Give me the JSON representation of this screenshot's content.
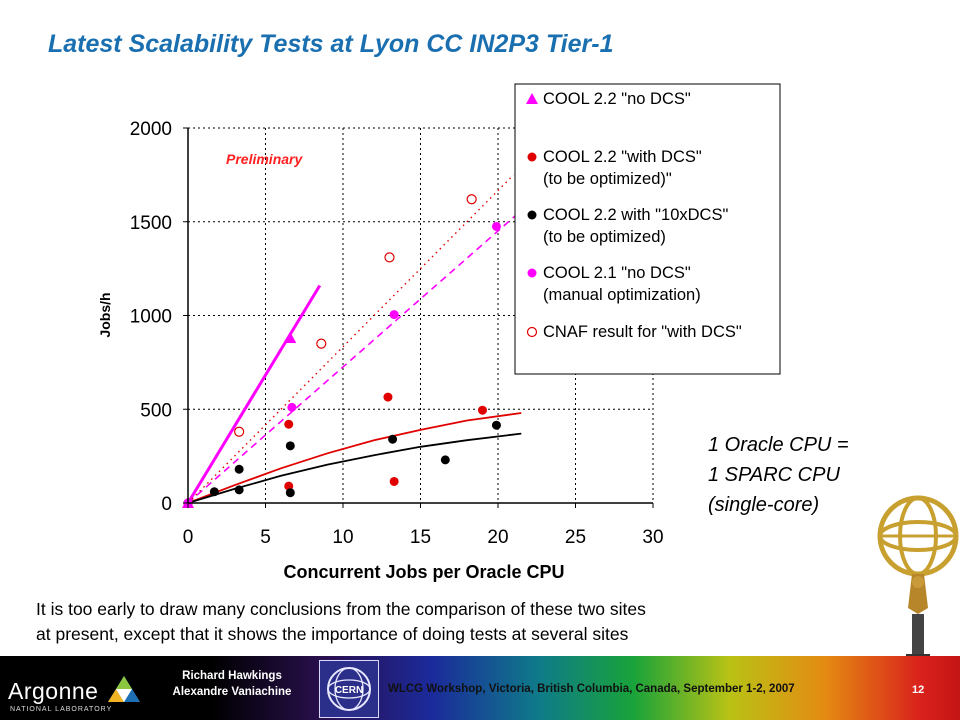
{
  "slide": {
    "title": "Latest Scalability Tests at Lyon CC IN2P3 Tier-1",
    "note_lines": [
      "1 Oracle CPU  =",
      "1 SPARC CPU",
      "(single-core)"
    ],
    "caption_lines": [
      "It is too early to draw many conclusions from the comparison of these two sites",
      "at present, except that it shows the importance of doing tests at several sites"
    ]
  },
  "footer": {
    "logo_word": "Argonne",
    "logo_sub": "NATIONAL LABORATORY",
    "authors": [
      "Richard Hawkings",
      "Alexandre Vaniachine"
    ],
    "cern_label": "CERN",
    "workshop": "WLCG Workshop,  Victoria, British Columbia, Canada, September 1-2, 2007",
    "page": "12"
  },
  "chart_data": {
    "type": "scatter",
    "xlabel": "Concurrent Jobs per Oracle CPU",
    "ylabel": "Jobs/h",
    "annotation": "Preliminary",
    "xlim": [
      0,
      30
    ],
    "ylim": [
      0,
      2000
    ],
    "xticks": [
      "0",
      "5",
      "10",
      "15",
      "20",
      "25",
      "30"
    ],
    "yticks": [
      "0",
      "500",
      "1000",
      "1500",
      "2000"
    ],
    "grid": "dotted",
    "legend_position": "top-right",
    "colors": {
      "magenta": "#ff00ff",
      "red": "#e00000",
      "black": "#000000",
      "cnaf": "#e00000"
    },
    "series": [
      {
        "name": "COOL 2.2 \"no DCS\"",
        "legend_lines": [
          "COOL 2.2 \"no DCS\""
        ],
        "marker": "triangle",
        "color": "#ff00ff",
        "points": [
          [
            0,
            0
          ],
          [
            6.6,
            880
          ]
        ],
        "fit": {
          "style": "solid",
          "width": 3,
          "points": [
            [
              0,
              0
            ],
            [
              8.5,
              1160
            ]
          ]
        }
      },
      {
        "name": "COOL 2.2 \"with DCS\" (to be optimized)\"",
        "legend_lines": [
          "COOL 2.2 \"with DCS\"",
          "(to be optimized)\""
        ],
        "marker": "dot",
        "color": "#e00000",
        "points": [
          [
            0,
            0
          ],
          [
            6.5,
            90
          ],
          [
            6.5,
            420
          ],
          [
            12.9,
            565
          ],
          [
            13.3,
            115
          ],
          [
            19.0,
            495
          ]
        ],
        "fit": {
          "style": "solid",
          "width": 1.8,
          "points": [
            [
              0,
              0
            ],
            [
              3,
              95
            ],
            [
              6,
              185
            ],
            [
              9,
              265
            ],
            [
              12,
              335
            ],
            [
              15,
              390
            ],
            [
              18,
              440
            ],
            [
              21.5,
              480
            ]
          ]
        }
      },
      {
        "name": "COOL 2.2 with \"10xDCS\" (to be optimized)",
        "legend_lines": [
          "COOL 2.2 with \"10xDCS\"",
          "(to be optimized)"
        ],
        "marker": "dot",
        "color": "#000000",
        "points": [
          [
            0,
            0
          ],
          [
            1.7,
            60
          ],
          [
            3.3,
            70
          ],
          [
            3.3,
            180
          ],
          [
            6.6,
            55
          ],
          [
            6.6,
            305
          ],
          [
            13.2,
            340
          ],
          [
            16.6,
            230
          ],
          [
            19.9,
            415
          ]
        ],
        "fit": {
          "style": "solid",
          "width": 1.8,
          "points": [
            [
              0,
              0
            ],
            [
              3,
              75
            ],
            [
              6,
              145
            ],
            [
              9,
              205
            ],
            [
              12,
              255
            ],
            [
              15,
              300
            ],
            [
              18,
              335
            ],
            [
              21.5,
              370
            ]
          ]
        }
      },
      {
        "name": "COOL 2.1 \"no DCS\" (manual optimization)",
        "legend_lines": [
          "COOL 2.1 \"no DCS\"",
          "(manual optimization)"
        ],
        "marker": "dot",
        "color": "#ff00ff",
        "points": [
          [
            0,
            0
          ],
          [
            6.7,
            510
          ],
          [
            13.3,
            1005
          ],
          [
            19.9,
            1475
          ]
        ],
        "fit": {
          "style": "dashed",
          "width": 1.6,
          "points": [
            [
              0,
              0
            ],
            [
              21.5,
              1560
            ]
          ]
        }
      },
      {
        "name": "CNAF result for \"with DCS\"",
        "legend_lines": [
          "CNAF result for \"with DCS\""
        ],
        "marker": "circle",
        "color": "#e00000",
        "points": [
          [
            3.3,
            380
          ],
          [
            8.6,
            850
          ],
          [
            13.0,
            1310
          ],
          [
            18.3,
            1620
          ]
        ],
        "fit": {
          "style": "dotted",
          "width": 1.4,
          "points": [
            [
              0,
              0
            ],
            [
              21,
              1750
            ]
          ]
        }
      }
    ]
  }
}
